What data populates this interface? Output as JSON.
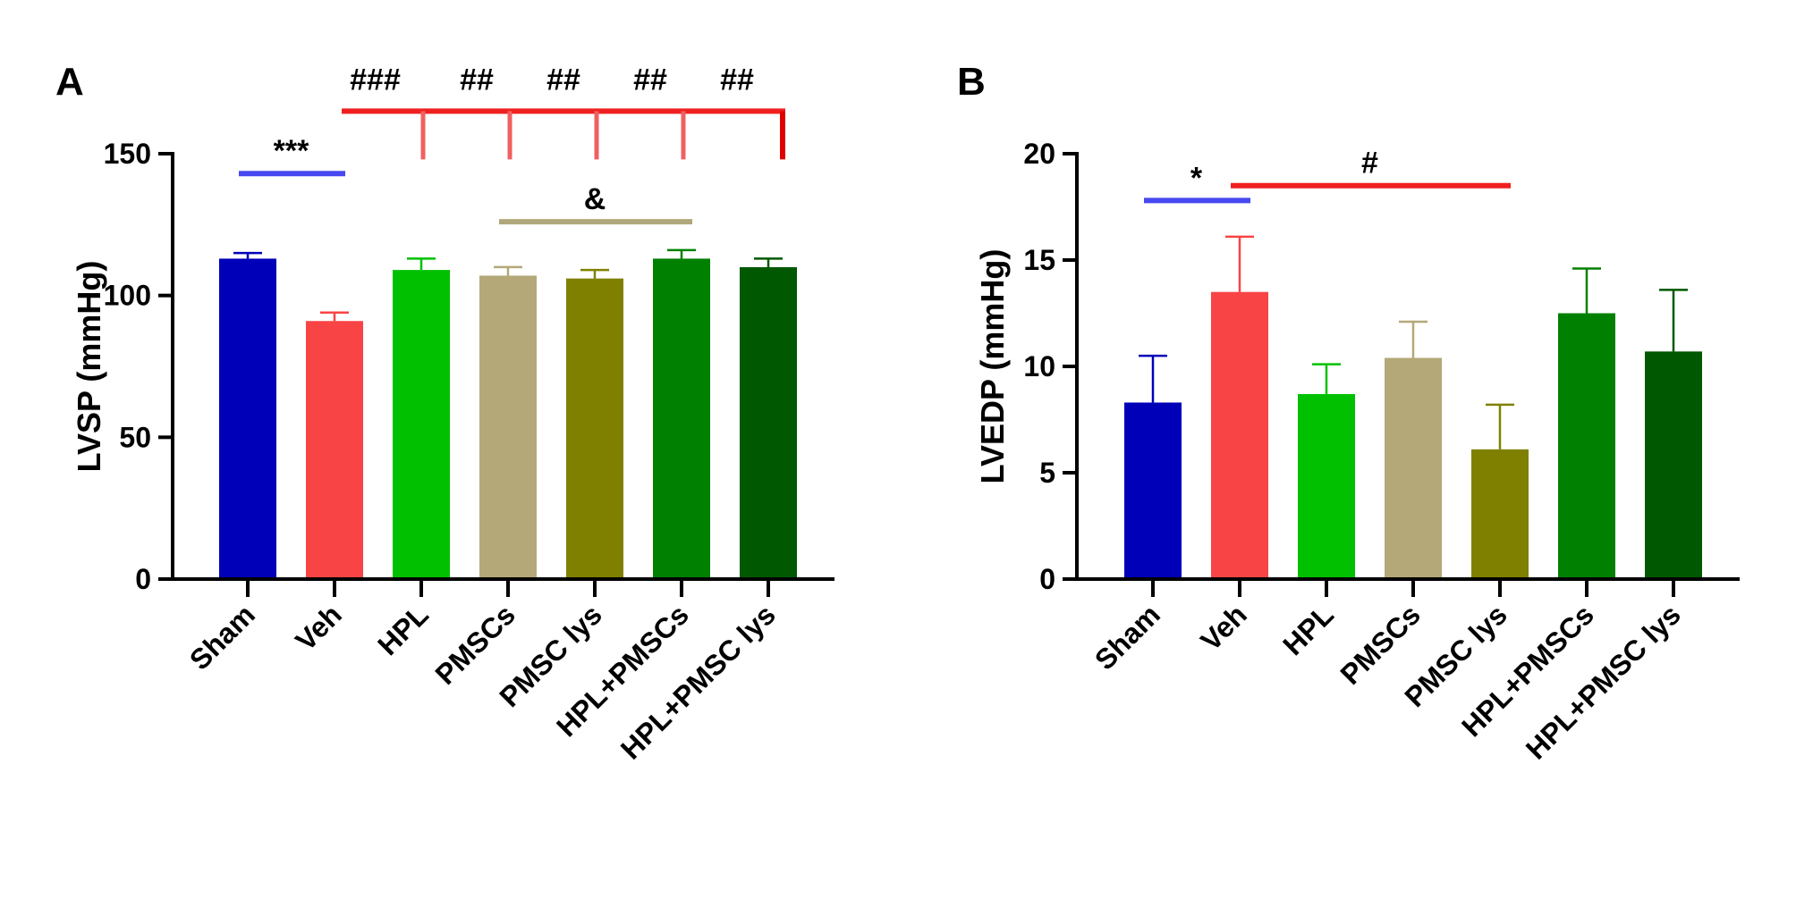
{
  "chart_data": [
    {
      "type": "bar",
      "panel_label": "A",
      "ylabel": "LVSP (mmHg)",
      "ylim": [
        0,
        150
      ],
      "yticks": [
        0,
        50,
        100,
        150
      ],
      "categories": [
        "Sham",
        "Veh",
        "HPL",
        "PMSCs",
        "PMSC lys",
        "HPL+PMSCs",
        "HPL+PMSC lys"
      ],
      "values": [
        113,
        91,
        109,
        107,
        106,
        113,
        110
      ],
      "errors": [
        2,
        3,
        4,
        3,
        3,
        3,
        3
      ],
      "colors": [
        "#0000b8",
        "#f84444",
        "#00c000",
        "#b4a878",
        "#808000",
        "#008000",
        "#005800"
      ],
      "annotations": [
        {
          "label": "***",
          "color": "#4848f0",
          "from": 0,
          "to": 1,
          "y": 143
        },
        {
          "label": "&",
          "color": "#b0a87a",
          "from": 3,
          "to": 5,
          "y": 126
        },
        {
          "label": "###",
          "color": "#f02020",
          "from": 1,
          "to": 2,
          "y": 165
        },
        {
          "label": "##",
          "color": "#f02020",
          "from": 1,
          "to": 3,
          "y": 165
        },
        {
          "label": "##",
          "color": "#f02020",
          "from": 1,
          "to": 4,
          "y": 165
        },
        {
          "label": "##",
          "color": "#f02020",
          "from": 1,
          "to": 5,
          "y": 165
        },
        {
          "label": "##",
          "color": "#f02020",
          "from": 1,
          "to": 6,
          "y": 165
        }
      ]
    },
    {
      "type": "bar",
      "panel_label": "B",
      "ylabel": "LVEDP (mmHg)",
      "ylim": [
        0,
        20
      ],
      "yticks": [
        0,
        5,
        10,
        15,
        20
      ],
      "categories": [
        "Sham",
        "Veh",
        "HPL",
        "PMSCs",
        "PMSC lys",
        "HPL+PMSCs",
        "HPL+PMSC lys"
      ],
      "values": [
        8.3,
        13.5,
        8.7,
        10.4,
        6.1,
        12.5,
        10.7
      ],
      "errors": [
        2.2,
        2.6,
        1.4,
        1.7,
        2.1,
        2.1,
        2.9
      ],
      "colors": [
        "#0000b8",
        "#f84444",
        "#00c000",
        "#b4a878",
        "#808000",
        "#008000",
        "#005800"
      ],
      "annotations": [
        {
          "label": "*",
          "color": "#4848f0",
          "from": 0,
          "to": 1,
          "y": 17.8
        },
        {
          "label": "#",
          "color": "#f02020",
          "from": 1,
          "to": 4,
          "y": 18.5
        }
      ]
    }
  ]
}
